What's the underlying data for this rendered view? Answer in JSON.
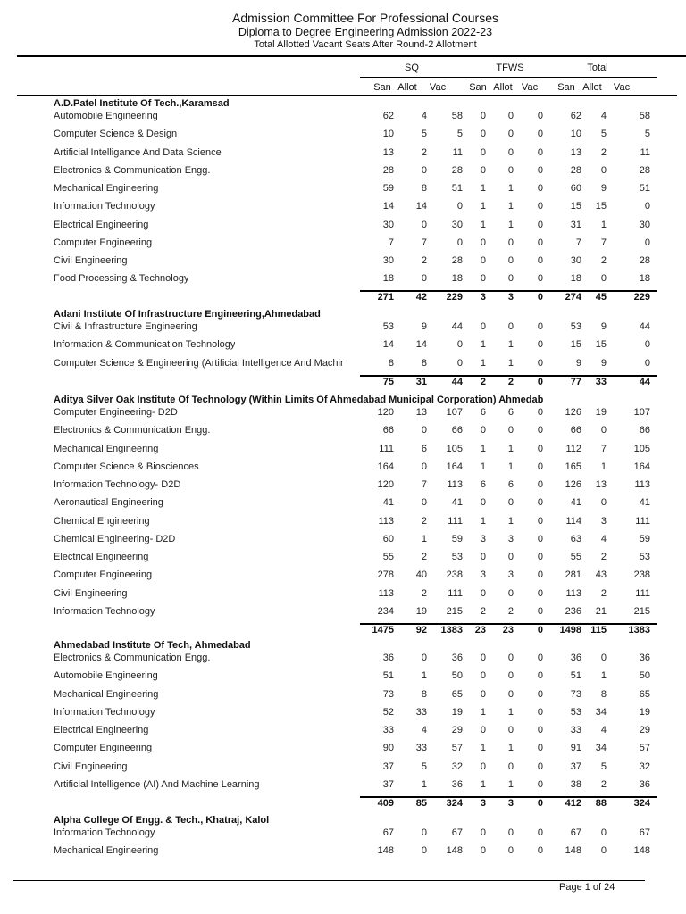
{
  "header": {
    "title": "Admission Committee For Professional Courses",
    "subtitle": "Diploma to Degree Engineering Admission 2022-23",
    "caption": "Total Allotted  Vacant Seats After Round-2 Allotment"
  },
  "column_groups": [
    "SQ",
    "TFWS",
    "Total"
  ],
  "sub_columns": [
    "San",
    "Allot",
    "Vac",
    "San",
    "Allot",
    "Vac",
    "San",
    "Allot",
    "Vac"
  ],
  "institutes": [
    {
      "name": "A.D.Patel Institute Of Tech.,Karamsad",
      "rows": [
        {
          "program": "Automobile Engineering",
          "values": [
            "62",
            "4",
            "58",
            "0",
            "0",
            "0",
            "62",
            "4",
            "58"
          ]
        },
        {
          "program": "Computer Science & Design",
          "values": [
            "10",
            "5",
            "5",
            "0",
            "0",
            "0",
            "10",
            "5",
            "5"
          ]
        },
        {
          "program": "Artificial Intelligance And Data Science",
          "values": [
            "13",
            "2",
            "11",
            "0",
            "0",
            "0",
            "13",
            "2",
            "11"
          ]
        },
        {
          "program": "Electronics & Communication Engg.",
          "values": [
            "28",
            "0",
            "28",
            "0",
            "0",
            "0",
            "28",
            "0",
            "28"
          ]
        },
        {
          "program": "Mechanical Engineering",
          "values": [
            "59",
            "8",
            "51",
            "1",
            "1",
            "0",
            "60",
            "9",
            "51"
          ]
        },
        {
          "program": "Information Technology",
          "values": [
            "14",
            "14",
            "0",
            "1",
            "1",
            "0",
            "15",
            "15",
            "0"
          ]
        },
        {
          "program": "Electrical Engineering",
          "values": [
            "30",
            "0",
            "30",
            "1",
            "1",
            "0",
            "31",
            "1",
            "30"
          ]
        },
        {
          "program": "Computer Engineering",
          "values": [
            "7",
            "7",
            "0",
            "0",
            "0",
            "0",
            "7",
            "7",
            "0"
          ]
        },
        {
          "program": "Civil Engineering",
          "values": [
            "30",
            "2",
            "28",
            "0",
            "0",
            "0",
            "30",
            "2",
            "28"
          ]
        },
        {
          "program": "Food Processing & Technology",
          "values": [
            "18",
            "0",
            "18",
            "0",
            "0",
            "0",
            "18",
            "0",
            "18"
          ]
        }
      ],
      "total": [
        "271",
        "42",
        "229",
        "3",
        "3",
        "0",
        "274",
        "45",
        "229"
      ]
    },
    {
      "name": "Adani Institute Of Infrastructure Engineering,Ahmedabad",
      "rows": [
        {
          "program": "Civil & Infrastructure Engineering",
          "values": [
            "53",
            "9",
            "44",
            "0",
            "0",
            "0",
            "53",
            "9",
            "44"
          ]
        },
        {
          "program": "Information & Communication Technology",
          "values": [
            "14",
            "14",
            "0",
            "1",
            "1",
            "0",
            "15",
            "15",
            "0"
          ]
        },
        {
          "program": "Computer Science & Engineering (Artificial Intelligence And Machir",
          "values": [
            "8",
            "8",
            "0",
            "1",
            "1",
            "0",
            "9",
            "9",
            "0"
          ]
        }
      ],
      "total": [
        "75",
        "31",
        "44",
        "2",
        "2",
        "0",
        "77",
        "33",
        "44"
      ]
    },
    {
      "name": "Aditya Silver Oak Institute Of Technology (Within Limits Of Ahmedabad Municipal Corporation) Ahmedab",
      "rows": [
        {
          "program": "Computer Engineering- D2D",
          "values": [
            "120",
            "13",
            "107",
            "6",
            "6",
            "0",
            "126",
            "19",
            "107"
          ]
        },
        {
          "program": "Electronics & Communication Engg.",
          "values": [
            "66",
            "0",
            "66",
            "0",
            "0",
            "0",
            "66",
            "0",
            "66"
          ]
        },
        {
          "program": "Mechanical Engineering",
          "values": [
            "111",
            "6",
            "105",
            "1",
            "1",
            "0",
            "112",
            "7",
            "105"
          ]
        },
        {
          "program": "Computer Science & Biosciences",
          "values": [
            "164",
            "0",
            "164",
            "1",
            "1",
            "0",
            "165",
            "1",
            "164"
          ]
        },
        {
          "program": "Information Technology- D2D",
          "values": [
            "120",
            "7",
            "113",
            "6",
            "6",
            "0",
            "126",
            "13",
            "113"
          ]
        },
        {
          "program": "Aeronautical Engineering",
          "values": [
            "41",
            "0",
            "41",
            "0",
            "0",
            "0",
            "41",
            "0",
            "41"
          ]
        },
        {
          "program": "Chemical Engineering",
          "values": [
            "113",
            "2",
            "111",
            "1",
            "1",
            "0",
            "114",
            "3",
            "111"
          ]
        },
        {
          "program": "Chemical Engineering- D2D",
          "values": [
            "60",
            "1",
            "59",
            "3",
            "3",
            "0",
            "63",
            "4",
            "59"
          ]
        },
        {
          "program": "Electrical Engineering",
          "values": [
            "55",
            "2",
            "53",
            "0",
            "0",
            "0",
            "55",
            "2",
            "53"
          ]
        },
        {
          "program": "Computer Engineering",
          "values": [
            "278",
            "40",
            "238",
            "3",
            "3",
            "0",
            "281",
            "43",
            "238"
          ]
        },
        {
          "program": "Civil Engineering",
          "values": [
            "113",
            "2",
            "111",
            "0",
            "0",
            "0",
            "113",
            "2",
            "111"
          ]
        },
        {
          "program": "Information Technology",
          "values": [
            "234",
            "19",
            "215",
            "2",
            "2",
            "0",
            "236",
            "21",
            "215"
          ]
        }
      ],
      "total": [
        "1475",
        "92",
        "1383",
        "23",
        "23",
        "0",
        "1498",
        "115",
        "1383"
      ]
    },
    {
      "name": "Ahmedabad Institute Of Tech, Ahmedabad",
      "rows": [
        {
          "program": "Electronics & Communication Engg.",
          "values": [
            "36",
            "0",
            "36",
            "0",
            "0",
            "0",
            "36",
            "0",
            "36"
          ]
        },
        {
          "program": "Automobile Engineering",
          "values": [
            "51",
            "1",
            "50",
            "0",
            "0",
            "0",
            "51",
            "1",
            "50"
          ]
        },
        {
          "program": "Mechanical Engineering",
          "values": [
            "73",
            "8",
            "65",
            "0",
            "0",
            "0",
            "73",
            "8",
            "65"
          ]
        },
        {
          "program": "Information Technology",
          "values": [
            "52",
            "33",
            "19",
            "1",
            "1",
            "0",
            "53",
            "34",
            "19"
          ]
        },
        {
          "program": "Electrical Engineering",
          "values": [
            "33",
            "4",
            "29",
            "0",
            "0",
            "0",
            "33",
            "4",
            "29"
          ]
        },
        {
          "program": "Computer Engineering",
          "values": [
            "90",
            "33",
            "57",
            "1",
            "1",
            "0",
            "91",
            "34",
            "57"
          ]
        },
        {
          "program": "Civil Engineering",
          "values": [
            "37",
            "5",
            "32",
            "0",
            "0",
            "0",
            "37",
            "5",
            "32"
          ]
        },
        {
          "program": "Artificial Intelligence (AI) And Machine Learning",
          "values": [
            "37",
            "1",
            "36",
            "1",
            "1",
            "0",
            "38",
            "2",
            "36"
          ]
        }
      ],
      "total": [
        "409",
        "85",
        "324",
        "3",
        "3",
        "0",
        "412",
        "88",
        "324"
      ]
    },
    {
      "name": "Alpha College Of Engg. & Tech., Khatraj, Kalol",
      "rows": [
        {
          "program": "Information Technology",
          "values": [
            "67",
            "0",
            "67",
            "0",
            "0",
            "0",
            "67",
            "0",
            "67"
          ]
        },
        {
          "program": "Mechanical Engineering",
          "values": [
            "148",
            "0",
            "148",
            "0",
            "0",
            "0",
            "148",
            "0",
            "148"
          ]
        }
      ]
    }
  ],
  "footer": {
    "page": "Page 1 of 24"
  }
}
